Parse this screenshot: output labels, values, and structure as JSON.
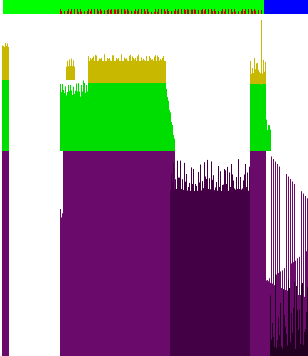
{
  "colors": {
    "background": "#ffffff",
    "top_green": "#00ff00",
    "top_blue": "#0000ff",
    "activity_red": "#cc0000",
    "bar_yellow": "#c8b800",
    "bar_green": "#00dd00",
    "bar_purple": "#6a0a6a",
    "bar_dark_purple": "#440044",
    "bar_darkest": "#220022"
  },
  "top_strip": {
    "segments": [
      {
        "name": "green-segment",
        "color": "#00ff00",
        "fraction": 0.855
      },
      {
        "name": "blue-segment",
        "color": "#0000ff",
        "fraction": 0.145
      }
    ]
  }
}
